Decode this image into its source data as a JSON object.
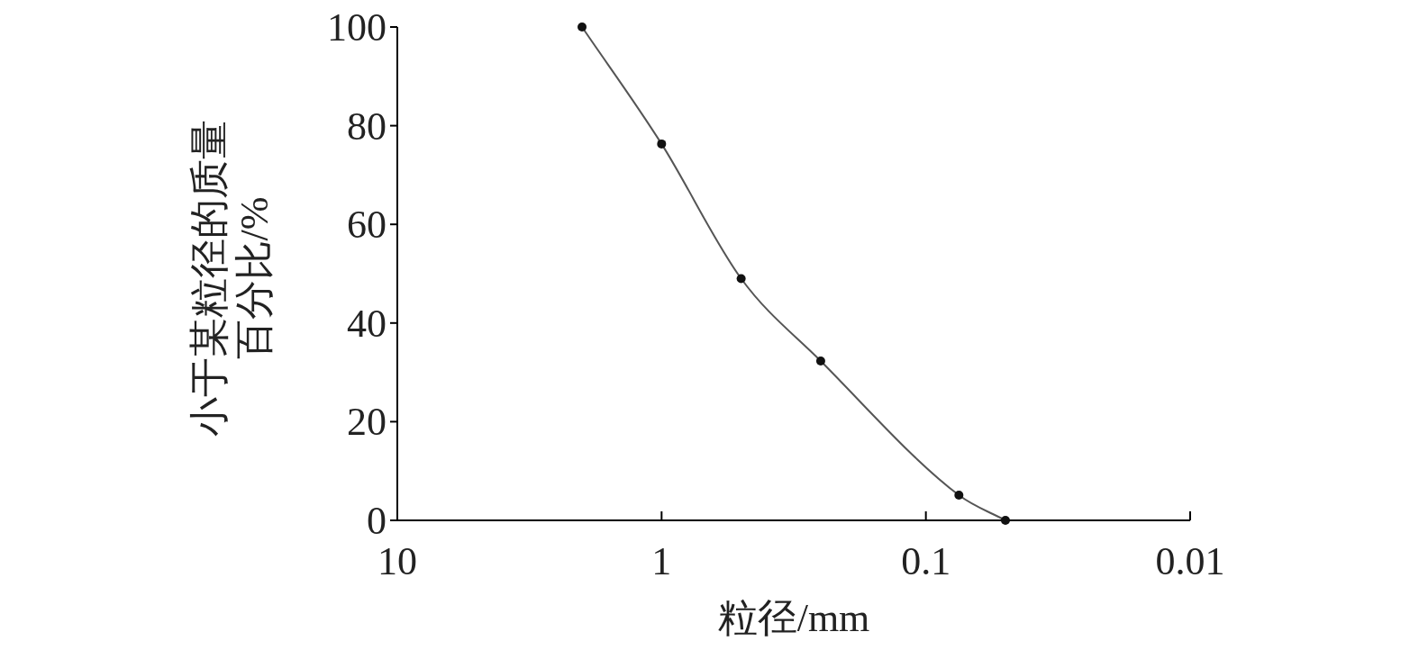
{
  "chart_data": {
    "type": "line",
    "xlabel": "粒径/mm",
    "ylabel": "小于某粒径的质量百分比/%",
    "x": [
      2,
      1,
      0.5,
      0.25,
      0.075,
      0.05
    ],
    "values": [
      100,
      76.3,
      49,
      32.3,
      5.1,
      0
    ],
    "color": "#555555",
    "marker": "circle",
    "log": "x",
    "xlim": [
      10,
      0.01
    ],
    "ylim": [
      0,
      100
    ],
    "xticks": [
      10,
      1,
      0.1,
      0.01
    ],
    "yticks": [
      0,
      20,
      40,
      60,
      80,
      100
    ]
  }
}
